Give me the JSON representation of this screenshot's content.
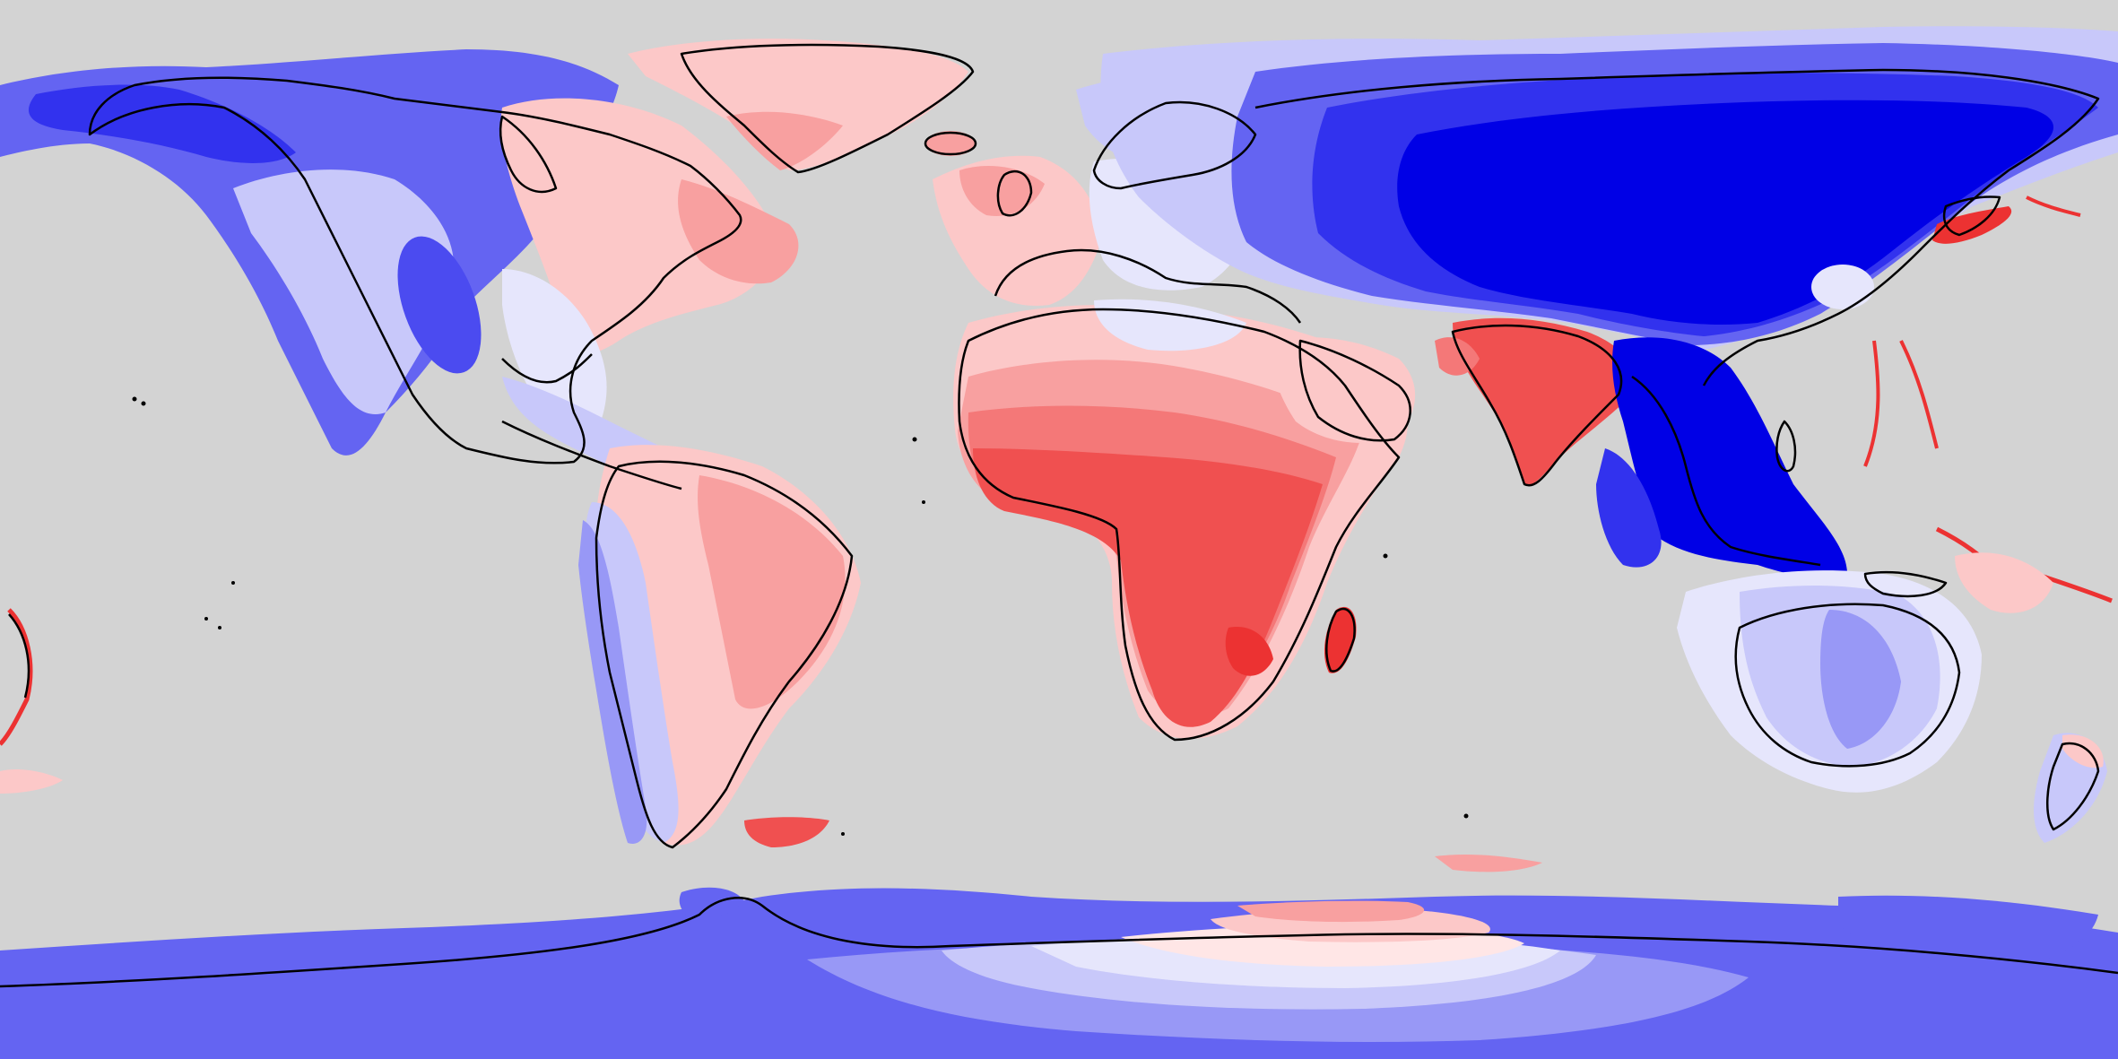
{
  "map": {
    "projection": "equirectangular",
    "background_color": "#d3d3d3",
    "coastline_color": "#000000",
    "palette": {
      "blue_strongest": "#0000e6",
      "blue_strong": "#3232ee",
      "blue_mid": "#6464f2",
      "blue_light": "#9898f6",
      "blue_pale": "#c8c8fa",
      "blue_faint": "#e6e6fc",
      "red_faint": "#ffe6e6",
      "red_pale": "#fcc8c8",
      "red_light": "#f8a0a0",
      "red_mid": "#f47878",
      "red_strong": "#f05050",
      "red_strongest": "#ec3232"
    },
    "legend": null,
    "title": ""
  }
}
